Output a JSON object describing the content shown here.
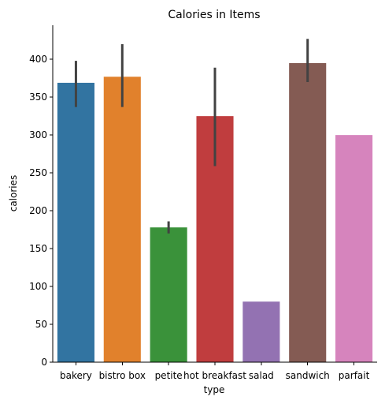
{
  "chart_data": {
    "type": "bar",
    "title": "Calories in Items",
    "xlabel": "type",
    "ylabel": "calories",
    "ylim": [
      0,
      445
    ],
    "yticks": [
      0,
      50,
      100,
      150,
      200,
      250,
      300,
      350,
      400
    ],
    "grid": false,
    "categories": [
      "bakery",
      "bistro box",
      "petite",
      "hot breakfast",
      "salad",
      "sandwich",
      "parfait"
    ],
    "values": [
      369,
      377,
      178,
      325,
      80,
      395,
      300
    ],
    "error_low": [
      337,
      337,
      170,
      259,
      80,
      370,
      300
    ],
    "error_high": [
      398,
      420,
      186,
      389,
      80,
      427,
      300
    ],
    "colors": [
      "#3274a1",
      "#e1812c",
      "#3a923a",
      "#c03d3e",
      "#9372b2",
      "#845b53",
      "#d684bd"
    ],
    "error_color": "#424242"
  }
}
